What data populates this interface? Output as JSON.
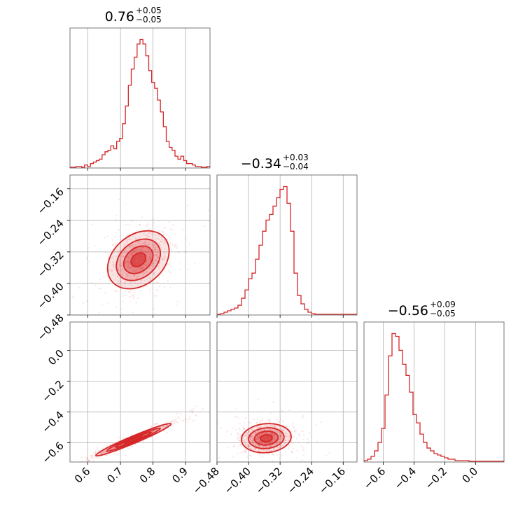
{
  "chart_data": {
    "type": "corner",
    "color": "#d62728",
    "parameters": [
      {
        "median": "0.76",
        "upper_err": "+0.05",
        "lower_err": "−0.05",
        "ticks": [
          0.6,
          0.7,
          0.8,
          0.9
        ],
        "tick_labels": [
          "0.6",
          "0.7",
          "0.8",
          "0.9"
        ],
        "range": [
          0.545,
          0.975
        ]
      },
      {
        "median": "−0.34",
        "upper_err": "+0.03",
        "lower_err": "−0.04",
        "ticks": [
          -0.48,
          -0.4,
          -0.32,
          -0.24,
          -0.16
        ],
        "tick_labels": [
          "−0.48",
          "−0.40",
          "−0.32",
          "−0.24",
          "−0.16"
        ],
        "range": [
          -0.48,
          -0.125
        ]
      },
      {
        "median": "−0.56",
        "upper_err": "+0.09",
        "lower_err": "−0.05",
        "ticks": [
          -0.6,
          -0.4,
          -0.2,
          0.0
        ],
        "tick_labels": [
          "−0.6",
          "−0.4",
          "−0.2",
          "0.0"
        ],
        "range": [
          -0.725,
          0.185
        ]
      }
    ],
    "histograms": [
      {
        "param": 0,
        "bins": [
          0.545,
          0.975
        ],
        "counts": [
          0.5,
          0.5,
          1,
          1,
          0.5,
          2,
          1,
          3,
          4,
          5,
          6,
          9,
          11,
          12,
          15,
          13,
          18,
          20,
          30,
          42,
          56,
          67,
          75,
          84,
          87,
          84,
          76,
          66,
          58,
          54,
          46,
          38,
          28,
          18,
          14,
          12,
          8,
          6,
          8,
          5,
          3,
          3,
          2,
          1,
          1,
          0.5,
          0.5,
          1
        ]
      },
      {
        "param": 1,
        "bins": [
          -0.48,
          -0.125
        ],
        "counts": [
          0.5,
          1,
          2,
          3,
          4,
          5,
          7,
          12,
          18,
          26,
          30,
          40,
          50,
          60,
          68,
          72,
          78,
          84,
          90,
          92,
          80,
          60,
          30,
          14,
          8,
          4,
          2,
          1,
          0.5,
          0.5,
          0.5,
          0.5,
          0.5,
          0.5,
          0.5,
          0.5,
          0.5,
          0.5,
          0.5,
          0.5
        ]
      },
      {
        "param": 2,
        "bins": [
          -0.725,
          0.185
        ],
        "counts": [
          1,
          2,
          4,
          8,
          14,
          24,
          48,
          76,
          92,
          90,
          80,
          70,
          62,
          50,
          34,
          28,
          20,
          14,
          10,
          8,
          6,
          5,
          4,
          3,
          2,
          2,
          1,
          1,
          1,
          1,
          0.5,
          0.5,
          0.5,
          0.5,
          0.5,
          0.5,
          0.5,
          0.5,
          0.5,
          0.5
        ]
      }
    ],
    "scatter": [
      {
        "x_param": 0,
        "y_param": 1,
        "center": [
          0.755,
          -0.34
        ],
        "sigma": [
          0.045,
          0.035
        ],
        "rho": 0.3
      },
      {
        "x_param": 0,
        "y_param": 2,
        "center": [
          0.74,
          -0.58
        ],
        "sigma": [
          0.055,
          0.05
        ],
        "rho": 0.97
      },
      {
        "x_param": 1,
        "y_param": 2,
        "center": [
          -0.355,
          -0.57
        ],
        "sigma": [
          0.03,
          0.045
        ],
        "rho": 0.1
      }
    ]
  }
}
